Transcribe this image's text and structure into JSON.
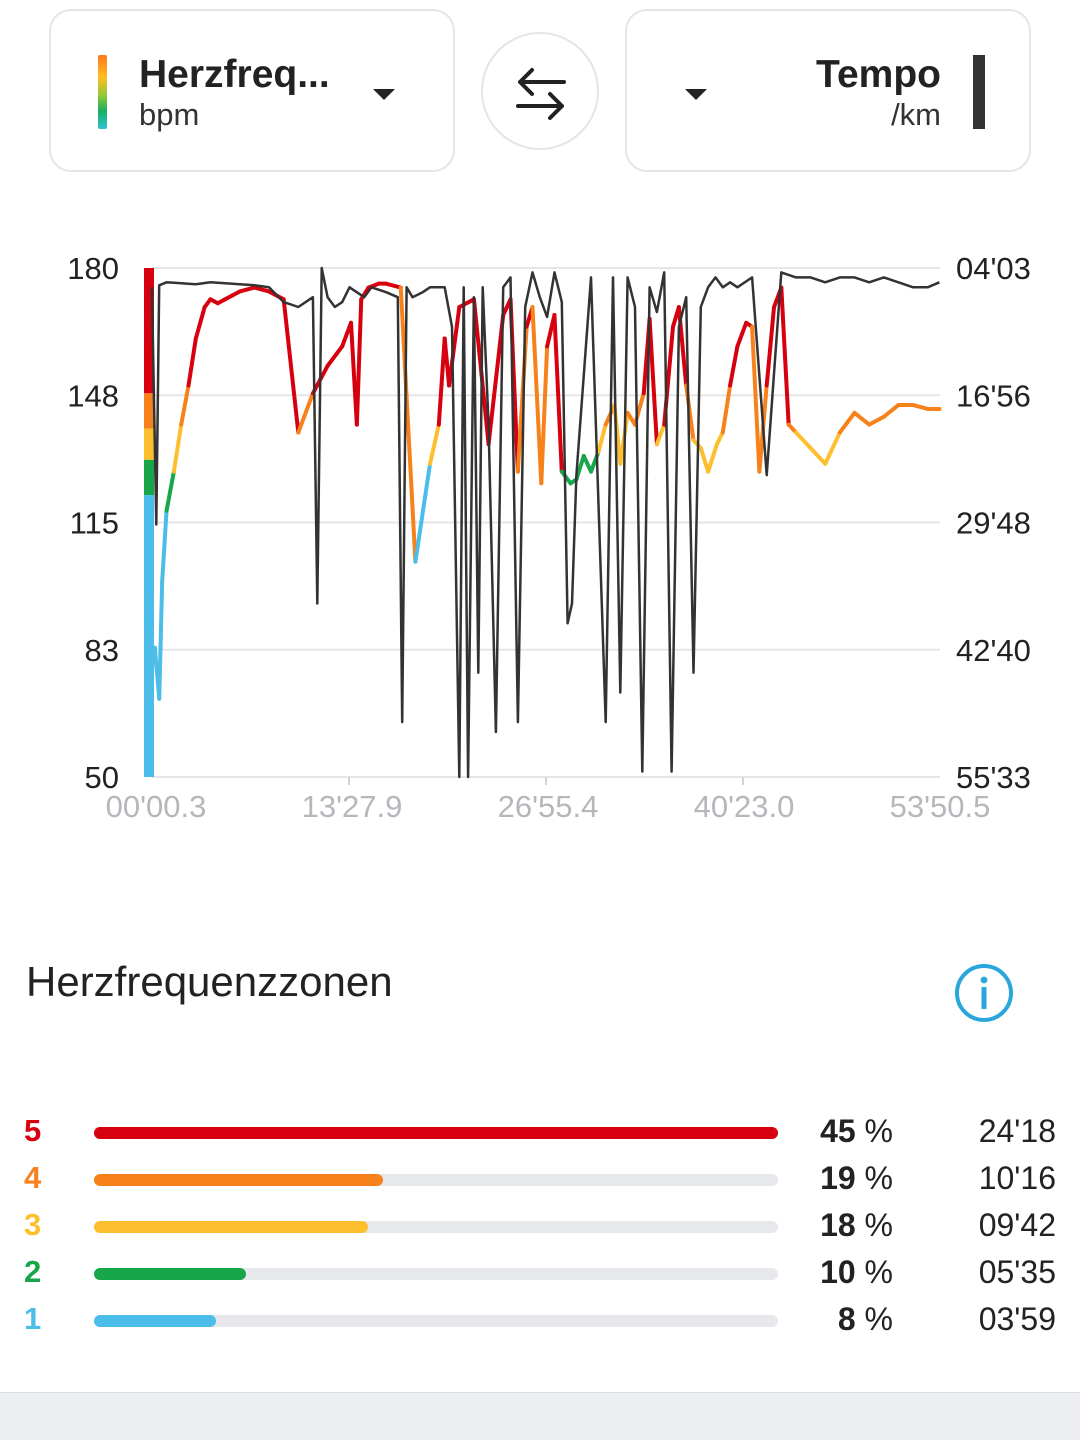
{
  "selector_left": {
    "title": "Herzfreq...",
    "unit": "bpm"
  },
  "selector_right": {
    "title": "Tempo",
    "unit": "/km"
  },
  "chart_data": {
    "type": "line",
    "x_axis": {
      "ticks": [
        "00'00.3",
        "13'27.9",
        "26'55.4",
        "40'23.0",
        "53'50.5"
      ],
      "range_minutes": [
        0.005,
        53.84
      ]
    },
    "y_left": {
      "ticks": [
        "180",
        "148",
        "115",
        "83",
        "50"
      ],
      "range": [
        50,
        180
      ]
    },
    "y_right": {
      "ticks": [
        "04'03",
        "16'56",
        "29'48",
        "42'40",
        "55'33"
      ]
    },
    "grid": true,
    "zone_colors": {
      "5": "#d7000f",
      "4": "#f7821b",
      "3": "#fdbf2d",
      "2": "#17a64a",
      "1": "#4bbde8"
    },
    "pace_color": "#333333",
    "series": [
      {
        "x": [
          0.0,
          0.2,
          0.5,
          0.7,
          1.0,
          1.5,
          2.0,
          2.5,
          3.0,
          3.3,
          3.6,
          4.0,
          4.5,
          5.0,
          5.5,
          6.0,
          7.0,
          8.0,
          9.0,
          10.0,
          11.0,
          12.0,
          13.0,
          13.6,
          14.0,
          14.3,
          14.8,
          15.5,
          16.0,
          17.0,
          18.0,
          19.0,
          19.6,
          20.0,
          20.3,
          21.0,
          22.0,
          23.0,
          24.0,
          24.5,
          25.0,
          25.6,
          26.0,
          26.6,
          27.0,
          27.5,
          28.0,
          28.6,
          29.0,
          29.5,
          30.0,
          30.5,
          31.0,
          31.6,
          32.0,
          32.5,
          33.0,
          33.6,
          34.0,
          34.5,
          35.0,
          35.6,
          36.0,
          36.5,
          37.0,
          37.5,
          38.0,
          38.6,
          39.0,
          39.5,
          40.0,
          40.6,
          41.0,
          41.5,
          42.0,
          42.5,
          43.0,
          43.5,
          44.0,
          45.0,
          46.0,
          47.0,
          48.0,
          49.0,
          50.0,
          51.0,
          52.0,
          53.0,
          53.8
        ],
        "y": [
          78,
          83,
          70,
          100,
          118,
          128,
          140,
          150,
          162,
          166,
          170,
          172,
          171,
          172,
          173,
          174,
          175,
          174,
          172,
          138,
          148,
          155,
          160,
          166,
          140,
          172,
          175,
          176,
          176,
          175,
          105,
          130,
          140,
          162,
          150,
          170,
          172,
          135,
          168,
          172,
          128,
          165,
          170,
          125,
          160,
          168,
          128,
          125,
          126,
          132,
          128,
          133,
          140,
          145,
          130,
          143,
          140,
          148,
          167,
          135,
          140,
          165,
          170,
          150,
          136,
          134,
          128,
          135,
          138,
          150,
          160,
          166,
          165,
          128,
          150,
          170,
          175,
          140,
          138,
          134,
          130,
          138,
          143,
          140,
          142,
          145,
          145,
          144,
          144
        ]
      },
      {
        "name": "Tempo /km",
        "x": [
          0.0,
          0.3,
          0.5,
          1.0,
          2.0,
          3.0,
          4.0,
          5.0,
          6.0,
          7.0,
          8.0,
          9.0,
          10.0,
          11.0,
          11.3,
          11.6,
          12.0,
          12.5,
          13.0,
          13.5,
          14.0,
          14.5,
          15.0,
          16.0,
          16.8,
          17.1,
          17.4,
          17.8,
          18.5,
          19.0,
          20.0,
          20.5,
          21.0,
          21.3,
          21.6,
          22.0,
          22.3,
          22.6,
          23.0,
          23.5,
          24.0,
          24.5,
          25.0,
          25.5,
          26.0,
          26.5,
          27.0,
          27.5,
          28.0,
          28.4,
          28.7,
          29.0,
          30.0,
          31.0,
          31.5,
          32.0,
          32.5,
          33.0,
          33.5,
          34.0,
          34.5,
          35.0,
          35.5,
          36.0,
          36.5,
          37.0,
          37.5,
          38.0,
          38.5,
          39.0,
          39.5,
          40.0,
          41.0,
          42.0,
          43.0,
          44.0,
          45.0,
          46.0,
          47.0,
          48.0,
          49.0,
          50.0,
          51.0,
          52.0,
          53.0,
          53.8
        ],
        "y": [
          6.0,
          30.0,
          5.8,
          5.5,
          5.6,
          5.7,
          5.5,
          5.6,
          5.7,
          5.8,
          6.0,
          7.5,
          8.0,
          7.0,
          38.0,
          4.0,
          7.0,
          8.0,
          7.5,
          6.0,
          6.5,
          7.0,
          6.0,
          6.5,
          7.0,
          50.0,
          6.0,
          7.0,
          6.5,
          6.0,
          6.0,
          10.0,
          56.0,
          6.0,
          58.0,
          7.0,
          45.0,
          6.0,
          20.0,
          51.0,
          6.0,
          5.0,
          50.0,
          8.0,
          4.5,
          7.0,
          9.0,
          4.5,
          7.5,
          40.0,
          38.0,
          25.0,
          5.0,
          50.0,
          5.0,
          47.0,
          5.0,
          8.0,
          55.0,
          6.0,
          8.5,
          4.5,
          55.0,
          10.0,
          7.0,
          45.0,
          8.0,
          6.0,
          5.0,
          6.0,
          5.5,
          6.0,
          5.0,
          25.0,
          4.5,
          5.0,
          5.0,
          5.5,
          5.0,
          5.0,
          5.5,
          5.0,
          5.5,
          6.0,
          6.0,
          5.5
        ]
      }
    ]
  },
  "zones": {
    "title": "Herzfrequenzzonen",
    "rows": [
      {
        "num": "5",
        "pct": "45",
        "pct_suffix": " %",
        "time": "24'18",
        "fraction": 0.45,
        "color": "#d7000f"
      },
      {
        "num": "4",
        "pct": "19",
        "pct_suffix": " %",
        "time": "10'16",
        "fraction": 0.19,
        "color": "#f7821b"
      },
      {
        "num": "3",
        "pct": "18",
        "pct_suffix": " %",
        "time": "09'42",
        "fraction": 0.18,
        "color": "#fdbf2d"
      },
      {
        "num": "2",
        "pct": "10",
        "pct_suffix": " %",
        "time": "05'35",
        "fraction": 0.1,
        "color": "#17a64a"
      },
      {
        "num": "1",
        "pct": "8",
        "pct_suffix": " %",
        "time": "03'59",
        "fraction": 0.08,
        "color": "#4bbde8"
      }
    ]
  },
  "icons": {
    "swap": "swap-arrows-icon",
    "info": "info-icon",
    "dropdown": "chevron-down-icon"
  },
  "info_color": "#2aa6dc"
}
